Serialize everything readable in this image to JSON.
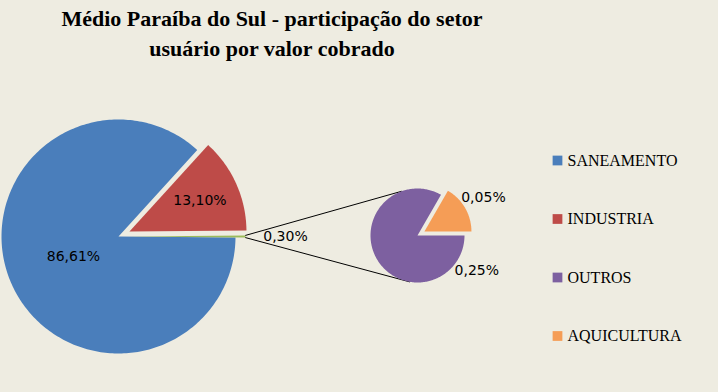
{
  "chart_data": {
    "type": "pie",
    "title": "Médio Paraíba do Sul - participação do setor usuário por valor cobrado",
    "data_labels": true,
    "legend": "right",
    "slices": [
      {
        "name": "SANEAMENTO",
        "value": 86.61,
        "value_label": "86,61%",
        "color": "#4a7ebb"
      },
      {
        "name": "INDUSTRIA",
        "value": 13.1,
        "value_label": "13,10%",
        "color": "#be4b48"
      },
      {
        "name": null,
        "value": 0.3,
        "value_label": "0,30%",
        "color": "#9bbb59",
        "slices": [
          {
            "name": "OUTROS",
            "value": 0.25,
            "value_label": "0,25%",
            "color": "#7d60a0"
          },
          {
            "name": "AQUICULTURA",
            "value": 0.05,
            "value_label": "0,05%",
            "color": "#f59d56"
          }
        ]
      }
    ]
  }
}
